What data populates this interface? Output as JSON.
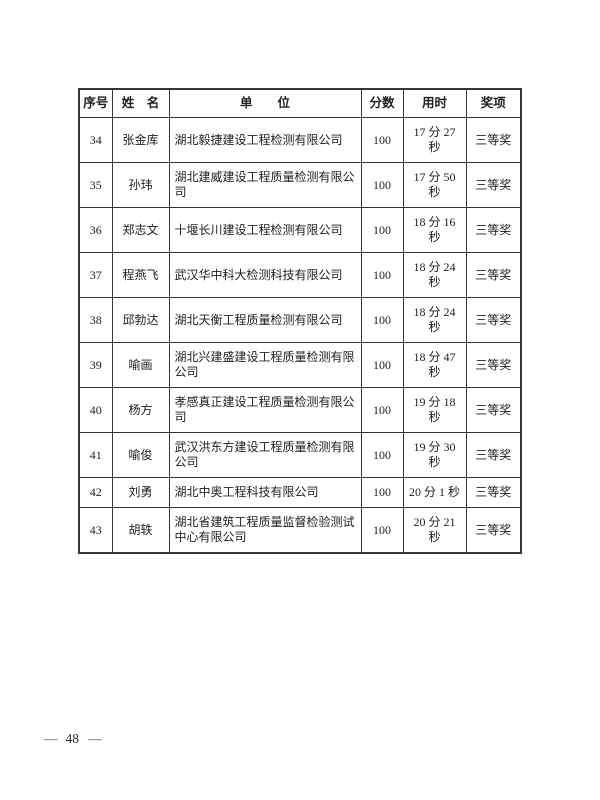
{
  "document": {
    "page_footer": {
      "dash_left": "—",
      "number": "48",
      "dash_right": "—"
    }
  },
  "colors": {
    "text": "#212121",
    "border": "#363636",
    "background": "#ffffff"
  },
  "table": {
    "columns": [
      {
        "key": "no",
        "label": "序号"
      },
      {
        "key": "name",
        "label": "姓　名"
      },
      {
        "key": "unit",
        "label": "单　　位"
      },
      {
        "key": "score",
        "label": "分数"
      },
      {
        "key": "time",
        "label": "用时"
      },
      {
        "key": "award",
        "label": "奖项"
      }
    ],
    "rows": [
      {
        "no": "34",
        "name": "张金库",
        "unit": "湖北毅捷建设工程检测有限公司",
        "score": "100",
        "time": "17 分 27 秒",
        "award": "三等奖"
      },
      {
        "no": "35",
        "name": "孙玮",
        "unit": "湖北建威建设工程质量检测有限公司",
        "score": "100",
        "time": "17 分 50 秒",
        "award": "三等奖"
      },
      {
        "no": "36",
        "name": "郑志文",
        "unit": "十堰长川建设工程检测有限公司",
        "score": "100",
        "time": "18 分 16 秒",
        "award": "三等奖"
      },
      {
        "no": "37",
        "name": "程燕飞",
        "unit": "武汉华中科大检测科技有限公司",
        "score": "100",
        "time": "18 分 24 秒",
        "award": "三等奖"
      },
      {
        "no": "38",
        "name": "邱勃达",
        "unit": "湖北天衡工程质量检测有限公司",
        "score": "100",
        "time": "18 分 24 秒",
        "award": "三等奖"
      },
      {
        "no": "39",
        "name": "喻画",
        "unit": "湖北兴建盛建设工程质量检测有限公司",
        "score": "100",
        "time": "18 分 47 秒",
        "award": "三等奖"
      },
      {
        "no": "40",
        "name": "杨方",
        "unit": "孝感真正建设工程质量检测有限公司",
        "score": "100",
        "time": "19 分 18 秒",
        "award": "三等奖"
      },
      {
        "no": "41",
        "name": "喻俊",
        "unit": "武汉洪东方建设工程质量检测有限公司",
        "score": "100",
        "time": "19 分 30 秒",
        "award": "三等奖"
      },
      {
        "no": "42",
        "name": "刘勇",
        "unit": "湖北中奥工程科技有限公司",
        "score": "100",
        "time": "20 分 1 秒",
        "award": "三等奖"
      },
      {
        "no": "43",
        "name": "胡轶",
        "unit": "湖北省建筑工程质量监督检验测试中心有限公司",
        "score": "100",
        "time": "20 分 21 秒",
        "award": "三等奖"
      }
    ]
  }
}
